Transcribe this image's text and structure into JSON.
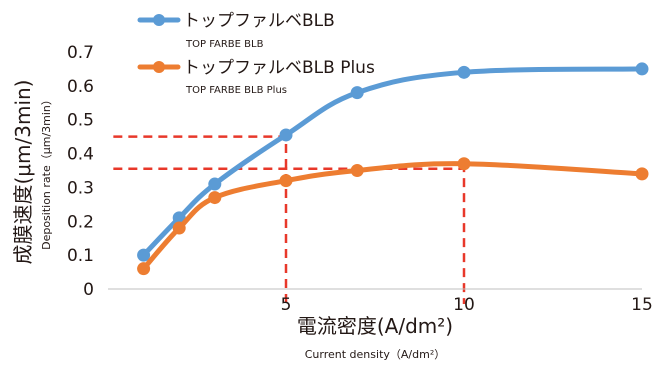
{
  "chart_data": {
    "type": "line",
    "x": [
      1,
      2,
      3,
      5,
      7,
      10,
      15
    ],
    "xlim": [
      0,
      15
    ],
    "ylim": [
      0,
      0.7
    ],
    "xticks": [
      5,
      10,
      15
    ],
    "yticks": [
      0,
      0.1,
      0.2,
      0.3,
      0.4,
      0.5,
      0.6,
      0.7
    ],
    "xtick_labels": [
      "5",
      "10",
      "15"
    ],
    "ytick_labels": [
      "0",
      "0.1",
      "0.2",
      "0.3",
      "0.4",
      "0.5",
      "0.6",
      "0.7"
    ],
    "xlabel": "電流密度(A/dm²)",
    "xlabel_en": "Current density（A/dm²）",
    "ylabel": "成膜速度(μm/3min)",
    "ylabel_en": "Deposition rate（μm/3min）",
    "series": [
      {
        "name": "トップファルベBLB",
        "name_en": "TOP FARBE BLB",
        "color": "#5b9bd5",
        "values": [
          0.1,
          0.21,
          0.31,
          0.455,
          0.58,
          0.64,
          0.65
        ]
      },
      {
        "name": "トップファルベBLB Plus",
        "name_en": "TOP FARBE BLB Plus",
        "color": "#ed7d31",
        "values": [
          0.06,
          0.18,
          0.27,
          0.32,
          0.35,
          0.37,
          0.34
        ]
      }
    ],
    "reference_lines": [
      {
        "x": 5,
        "y": 0.45
      },
      {
        "x": 10,
        "y": 0.355
      }
    ],
    "reference_color": "#e8382a",
    "grid": false,
    "legend_position": "top-left"
  }
}
